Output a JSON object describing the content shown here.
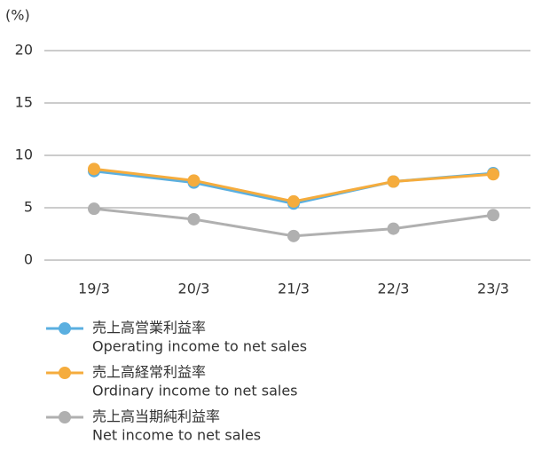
{
  "chart_data": {
    "type": "line",
    "y_label": "(%)",
    "categories": [
      "19/3",
      "20/3",
      "21/3",
      "22/3",
      "23/3"
    ],
    "series": [
      {
        "name": "売上高営業利益率",
        "name_en": "Operating income to net sales",
        "color": "#5aafe0",
        "values": [
          8.5,
          7.4,
          5.4,
          7.5,
          8.3
        ]
      },
      {
        "name": "売上高経常利益率",
        "name_en": "Ordinary income to net sales",
        "color": "#f5ac3d",
        "values": [
          8.7,
          7.6,
          5.6,
          7.5,
          8.2
        ]
      },
      {
        "name": "売上高当期純利益率",
        "name_en": "Net income to net sales",
        "color": "#b0b0b0",
        "values": [
          4.9,
          3.9,
          2.3,
          3.0,
          4.3
        ]
      }
    ],
    "ylim": [
      0,
      20
    ],
    "yticks": [
      0,
      5,
      10,
      15,
      20
    ],
    "grid": true
  }
}
